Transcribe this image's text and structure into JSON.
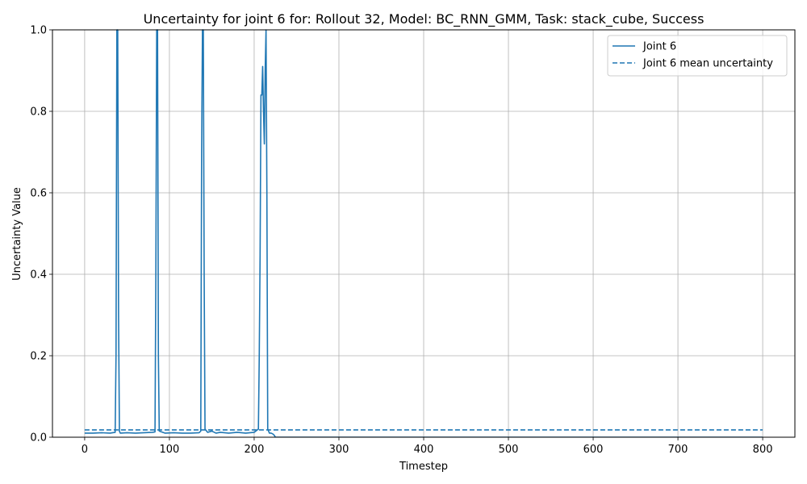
{
  "chart_data": {
    "type": "line",
    "title": "Uncertainty for joint 6 for: Rollout 32, Model: BC_RNN_GMM, Task: stack_cube, Success",
    "xlabel": "Timestep",
    "ylabel": "Uncertainty Value",
    "xlim": [
      -38,
      838
    ],
    "ylim": [
      0,
      1.0
    ],
    "xticks": [
      0,
      100,
      200,
      300,
      400,
      500,
      600,
      700,
      800
    ],
    "yticks": [
      0.0,
      0.2,
      0.4,
      0.6,
      0.8,
      1.0
    ],
    "xtick_labels": [
      "0",
      "100",
      "200",
      "300",
      "400",
      "500",
      "600",
      "700",
      "800"
    ],
    "ytick_labels": [
      "0.0",
      "0.2",
      "0.4",
      "0.6",
      "0.8",
      "1.0"
    ],
    "grid": true,
    "legend_position": "top-right",
    "color": "#1f77b4",
    "series": [
      {
        "name": "Joint 6",
        "style": "solid",
        "x": [
          0,
          10,
          20,
          30,
          36,
          37,
          38,
          39,
          40,
          41,
          42,
          50,
          60,
          70,
          80,
          83,
          84,
          85,
          86,
          87,
          88,
          95,
          105,
          115,
          125,
          135,
          137,
          138,
          139,
          140,
          141,
          142,
          145,
          150,
          155,
          160,
          170,
          180,
          190,
          200,
          205,
          206,
          207,
          208,
          209,
          210,
          211,
          212,
          213,
          214,
          215,
          216,
          218,
          220,
          222,
          224,
          225,
          240,
          300,
          400,
          500,
          600,
          700,
          800
        ],
        "y": [
          0.01,
          0.01,
          0.011,
          0.01,
          0.012,
          0.2,
          1.0,
          1.0,
          0.3,
          0.015,
          0.01,
          0.011,
          0.01,
          0.011,
          0.012,
          0.013,
          0.4,
          1.0,
          1.0,
          0.2,
          0.015,
          0.01,
          0.011,
          0.01,
          0.01,
          0.011,
          0.015,
          0.7,
          1.0,
          1.0,
          0.4,
          0.02,
          0.012,
          0.015,
          0.01,
          0.012,
          0.01,
          0.012,
          0.01,
          0.012,
          0.02,
          0.2,
          0.45,
          0.84,
          0.84,
          0.91,
          0.8,
          0.72,
          0.9,
          1.0,
          0.6,
          0.02,
          0.01,
          0.01,
          0.008,
          0.004,
          0.0,
          0.0,
          0.0,
          0.0,
          0.0,
          0.0,
          0.0,
          0.0
        ]
      },
      {
        "name": "Joint 6 mean uncertainty",
        "style": "dashed",
        "x": [
          0,
          800
        ],
        "y": [
          0.018,
          0.018
        ]
      }
    ]
  }
}
